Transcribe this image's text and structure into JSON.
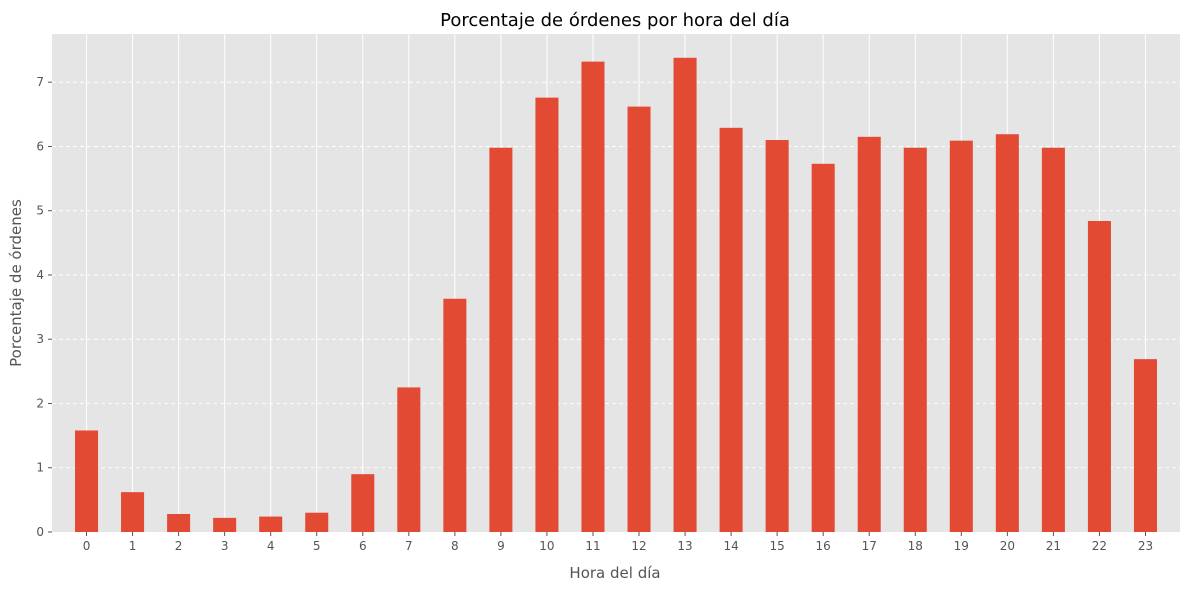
{
  "chart_data": {
    "type": "bar",
    "title": "Porcentaje de órdenes por hora del día",
    "xlabel": "Hora del día",
    "ylabel": "Porcentaje de órdenes",
    "categories": [
      "0",
      "1",
      "2",
      "3",
      "4",
      "5",
      "6",
      "7",
      "8",
      "9",
      "10",
      "11",
      "12",
      "13",
      "14",
      "15",
      "16",
      "17",
      "18",
      "19",
      "20",
      "21",
      "22",
      "23"
    ],
    "values": [
      1.58,
      0.62,
      0.28,
      0.22,
      0.24,
      0.3,
      0.9,
      2.25,
      3.63,
      5.98,
      6.76,
      7.32,
      6.62,
      7.38,
      6.29,
      6.1,
      5.73,
      6.15,
      5.98,
      6.09,
      6.19,
      5.98,
      4.84,
      2.69
    ],
    "ylim": [
      0,
      7.75
    ],
    "yticks": [
      0,
      1,
      2,
      3,
      4,
      5,
      6,
      7
    ],
    "grid": true,
    "legend": "none",
    "colors": {
      "bar": "#E24A33",
      "plot_background": "#E5E5E5",
      "grid_line": "#FFFFFF",
      "text": "#555555",
      "title": "#000000"
    }
  }
}
